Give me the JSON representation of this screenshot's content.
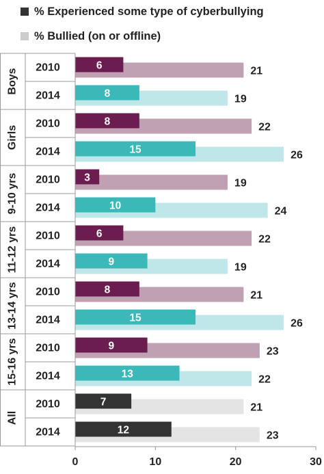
{
  "legend": {
    "items": [
      {
        "label": "% Experienced some type of cyberbullying",
        "color": "#333333"
      },
      {
        "label": "% Bullied (on or offline)",
        "color": "#cccccc"
      }
    ]
  },
  "chart_data": {
    "type": "bar",
    "orientation": "horizontal",
    "legend_placement": "top-left",
    "grid": false,
    "xlim": [
      0,
      30
    ],
    "xticks": [
      "0",
      "10",
      "20",
      "30"
    ],
    "groups": [
      {
        "label": "Boys",
        "rows": [
          {
            "year": "2010",
            "cyberbullying": 6,
            "bullied": 21
          },
          {
            "year": "2014",
            "cyberbullying": 8,
            "bullied": 19
          }
        ]
      },
      {
        "label": "Girls",
        "rows": [
          {
            "year": "2010",
            "cyberbullying": 8,
            "bullied": 22
          },
          {
            "year": "2014",
            "cyberbullying": 15,
            "bullied": 26
          }
        ]
      },
      {
        "label": "9-10 yrs",
        "rows": [
          {
            "year": "2010",
            "cyberbullying": 3,
            "bullied": 19
          },
          {
            "year": "2014",
            "cyberbullying": 10,
            "bullied": 24
          }
        ]
      },
      {
        "label": "11-12 yrs",
        "rows": [
          {
            "year": "2010",
            "cyberbullying": 6,
            "bullied": 22
          },
          {
            "year": "2014",
            "cyberbullying": 9,
            "bullied": 19
          }
        ]
      },
      {
        "label": "13-14 yrs",
        "rows": [
          {
            "year": "2010",
            "cyberbullying": 8,
            "bullied": 21
          },
          {
            "year": "2014",
            "cyberbullying": 15,
            "bullied": 26
          }
        ]
      },
      {
        "label": "15-16 yrs",
        "rows": [
          {
            "year": "2010",
            "cyberbullying": 9,
            "bullied": 23
          },
          {
            "year": "2014",
            "cyberbullying": 13,
            "bullied": 22
          }
        ]
      },
      {
        "label": "All",
        "rows": [
          {
            "year": "2010",
            "cyberbullying": 7,
            "bullied": 21
          },
          {
            "year": "2014",
            "cyberbullying": 12,
            "bullied": 23
          }
        ]
      }
    ],
    "colors": {
      "2010_cyber": "#6b1d4f",
      "2010_bullied": "#bfa1b3",
      "2014_cyber": "#3bb8b8",
      "2014_bullied": "#bfe6e8",
      "all_cyber": "#333333",
      "all_bullied": "#e4e4e4"
    }
  }
}
